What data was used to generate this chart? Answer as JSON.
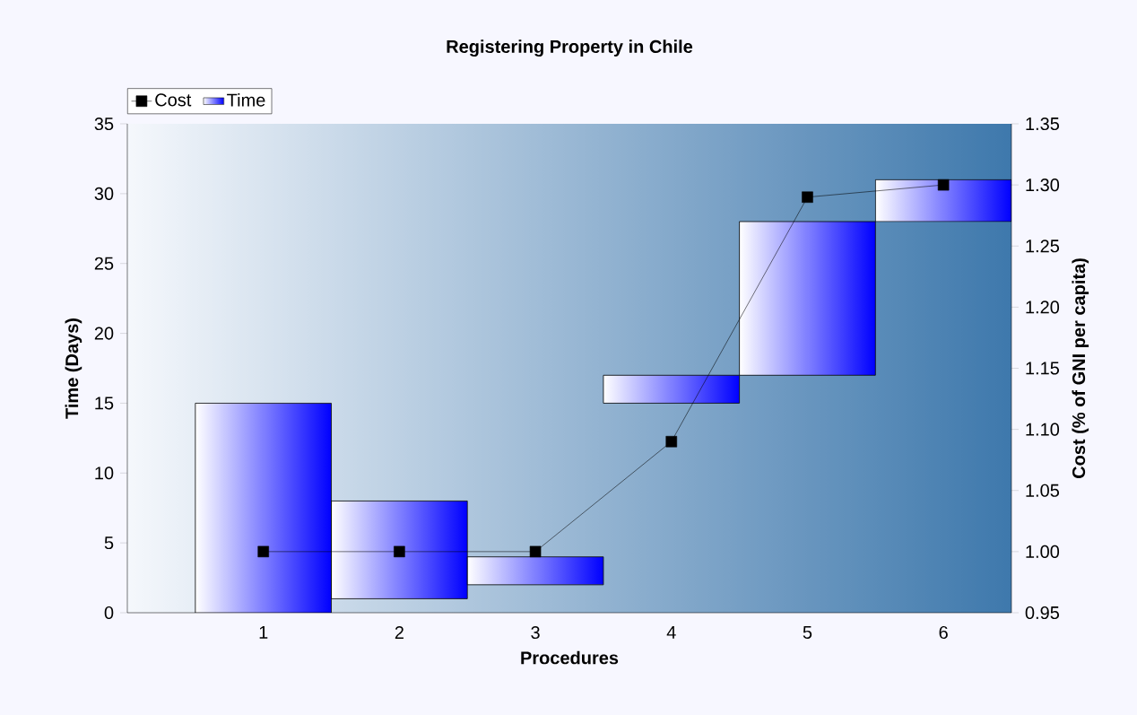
{
  "chart_data": {
    "type": "bar",
    "title": "Registering Property in Chile",
    "xlabel": "Procedures",
    "ylabel": "Time (Days)",
    "y2label": "Cost (% of GNI per capita)",
    "categories": [
      "1",
      "2",
      "3",
      "4",
      "5",
      "6"
    ],
    "series": [
      {
        "name": "Time",
        "color": "#0000ff",
        "base": [
          0,
          1,
          2,
          15,
          17,
          28
        ],
        "values": [
          15,
          7,
          2,
          2,
          11,
          3
        ]
      },
      {
        "name": "Cost",
        "type": "line",
        "axis": "y2",
        "color": "#000000",
        "marker": "square",
        "values": [
          1.0,
          1.0,
          1.0,
          1.09,
          1.29,
          1.3
        ]
      }
    ],
    "ylim": [
      0,
      35
    ],
    "yticks": [
      0,
      5,
      10,
      15,
      20,
      25,
      30,
      35
    ],
    "y2lim": [
      0.95,
      1.35
    ],
    "y2ticks": [
      0.95,
      {
        "value": 1.0,
        "label": "1.00"
      },
      1.05,
      {
        "value": 1.1,
        "label": "1.10"
      },
      1.15,
      {
        "value": 1.2,
        "label": "1.20"
      },
      1.25,
      {
        "value": 1.3,
        "label": "1.30"
      },
      1.35
    ],
    "grid": false,
    "legend": "top left"
  }
}
